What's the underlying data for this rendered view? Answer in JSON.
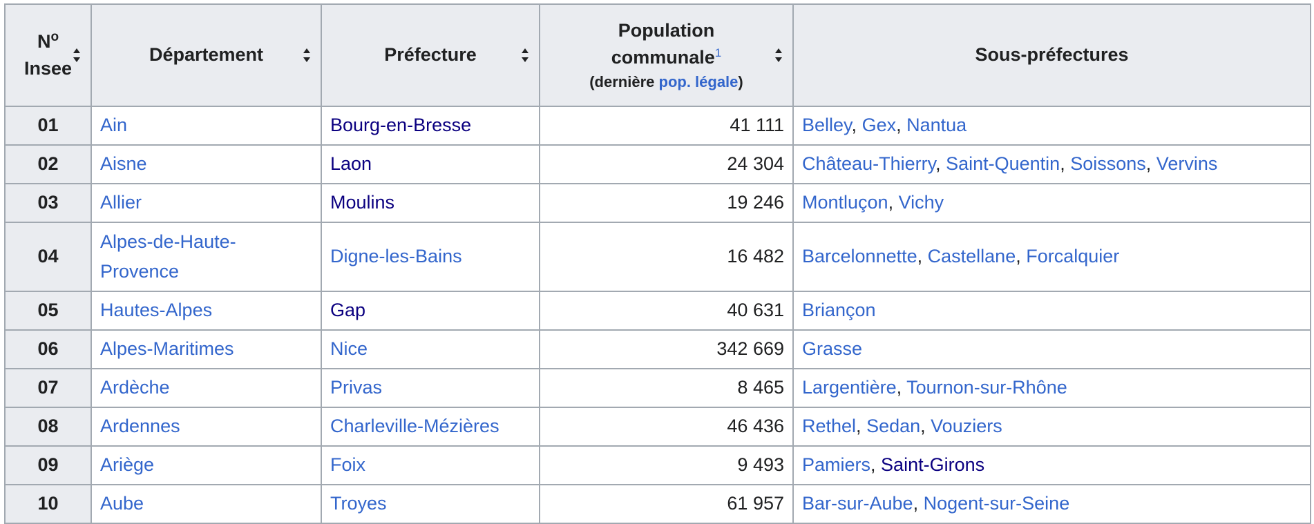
{
  "header": {
    "num_prefix": "N",
    "num_sup": "o",
    "num_line2": "Insee",
    "departement": "Département",
    "prefecture": "Préfecture",
    "population_line1": "Population",
    "population_line2": "communale",
    "population_ref": "1",
    "population_note_open": "(dernière ",
    "population_note_link": "pop. légale",
    "population_note_close": ")",
    "sous_prefectures": "Sous-préfectures"
  },
  "rows": [
    {
      "num": "01",
      "departement": "Ain",
      "prefecture": "Bourg-en-Bresse",
      "pref_visited": true,
      "population": "41 111",
      "sous": [
        {
          "name": "Belley",
          "visited": false
        },
        {
          "name": "Gex",
          "visited": false
        },
        {
          "name": "Nantua",
          "visited": false
        }
      ]
    },
    {
      "num": "02",
      "departement": "Aisne",
      "prefecture": "Laon",
      "pref_visited": true,
      "population": "24 304",
      "sous": [
        {
          "name": "Château-Thierry",
          "visited": false
        },
        {
          "name": "Saint-Quentin",
          "visited": false
        },
        {
          "name": "Soissons",
          "visited": false
        },
        {
          "name": "Vervins",
          "visited": false
        }
      ]
    },
    {
      "num": "03",
      "departement": "Allier",
      "prefecture": "Moulins",
      "pref_visited": true,
      "population": "19 246",
      "sous": [
        {
          "name": "Montluçon",
          "visited": false
        },
        {
          "name": "Vichy",
          "visited": false
        }
      ]
    },
    {
      "num": "04",
      "departement": "Alpes-de-Haute-Provence",
      "prefecture": "Digne-les-Bains",
      "pref_visited": false,
      "population": "16 482",
      "sous": [
        {
          "name": "Barcelonnette",
          "visited": false
        },
        {
          "name": "Castellane",
          "visited": false
        },
        {
          "name": "Forcalquier",
          "visited": false
        }
      ]
    },
    {
      "num": "05",
      "departement": "Hautes-Alpes",
      "prefecture": "Gap",
      "pref_visited": true,
      "population": "40 631",
      "sous": [
        {
          "name": "Briançon",
          "visited": false
        }
      ]
    },
    {
      "num": "06",
      "departement": "Alpes-Maritimes",
      "prefecture": "Nice",
      "pref_visited": false,
      "population": "342 669",
      "sous": [
        {
          "name": "Grasse",
          "visited": false
        }
      ]
    },
    {
      "num": "07",
      "departement": "Ardèche",
      "prefecture": "Privas",
      "pref_visited": false,
      "population": "8 465",
      "sous": [
        {
          "name": "Largentière",
          "visited": false
        },
        {
          "name": "Tournon-sur-Rhône",
          "visited": false
        }
      ]
    },
    {
      "num": "08",
      "departement": "Ardennes",
      "prefecture": "Charleville-Mézières",
      "pref_visited": false,
      "population": "46 436",
      "sous": [
        {
          "name": "Rethel",
          "visited": false
        },
        {
          "name": "Sedan",
          "visited": false
        },
        {
          "name": "Vouziers",
          "visited": false
        }
      ]
    },
    {
      "num": "09",
      "departement": "Ariège",
      "prefecture": "Foix",
      "pref_visited": false,
      "population": "9 493",
      "sous": [
        {
          "name": "Pamiers",
          "visited": false
        },
        {
          "name": "Saint-Girons",
          "visited": true
        }
      ]
    },
    {
      "num": "10",
      "departement": "Aube",
      "prefecture": "Troyes",
      "pref_visited": false,
      "population": "61 957",
      "sous": [
        {
          "name": "Bar-sur-Aube",
          "visited": false
        },
        {
          "name": "Nogent-sur-Seine",
          "visited": false
        }
      ]
    }
  ],
  "colors": {
    "link": "#3366cc",
    "link_visited": "#0b0080",
    "header_bg": "#eaecf0",
    "border": "#a2a9b1",
    "text": "#202122"
  }
}
